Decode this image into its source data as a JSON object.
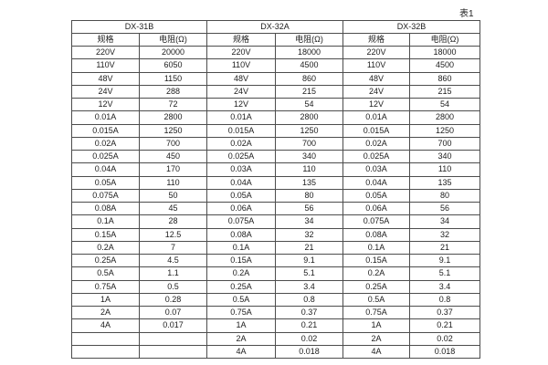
{
  "page": {
    "caption": "表1"
  },
  "table": {
    "groups": [
      {
        "name": "DX-31B"
      },
      {
        "name": "DX-32A"
      },
      {
        "name": "DX-32B"
      }
    ],
    "subheaders": {
      "spec": "规格",
      "resistance": "电阻(Ω)"
    },
    "rows": [
      [
        "220V",
        "20000",
        "220V",
        "18000",
        "220V",
        "18000"
      ],
      [
        "110V",
        "6050",
        "110V",
        "4500",
        "110V",
        "4500"
      ],
      [
        "48V",
        "1150",
        "48V",
        "860",
        "48V",
        "860"
      ],
      [
        "24V",
        "288",
        "24V",
        "215",
        "24V",
        "215"
      ],
      [
        "12V",
        "72",
        "12V",
        "54",
        "12V",
        "54"
      ],
      [
        "0.01A",
        "2800",
        "0.01A",
        "2800",
        "0.01A",
        "2800"
      ],
      [
        "0.015A",
        "1250",
        "0.015A",
        "1250",
        "0.015A",
        "1250"
      ],
      [
        "0.02A",
        "700",
        "0.02A",
        "700",
        "0.02A",
        "700"
      ],
      [
        "0.025A",
        "450",
        "0.025A",
        "340",
        "0.025A",
        "340"
      ],
      [
        "0.04A",
        "170",
        "0.03A",
        "110",
        "0.03A",
        "110"
      ],
      [
        "0.05A",
        "110",
        "0.04A",
        "135",
        "0.04A",
        "135"
      ],
      [
        "0.075A",
        "50",
        "0.05A",
        "80",
        "0.05A",
        "80"
      ],
      [
        "0.08A",
        "45",
        "0.06A",
        "56",
        "0.06A",
        "56"
      ],
      [
        "0.1A",
        "28",
        "0.075A",
        "34",
        "0.075A",
        "34"
      ],
      [
        "0.15A",
        "12.5",
        "0.08A",
        "32",
        "0.08A",
        "32"
      ],
      [
        "0.2A",
        "7",
        "0.1A",
        "21",
        "0.1A",
        "21"
      ],
      [
        "0.25A",
        "4.5",
        "0.15A",
        "9.1",
        "0.15A",
        "9.1"
      ],
      [
        "0.5A",
        "1.1",
        "0.2A",
        "5.1",
        "0.2A",
        "5.1"
      ],
      [
        "0.75A",
        "0.5",
        "0.25A",
        "3.4",
        "0.25A",
        "3.4"
      ],
      [
        "1A",
        "0.28",
        "0.5A",
        "0.8",
        "0.5A",
        "0.8"
      ],
      [
        "2A",
        "0.07",
        "0.75A",
        "0.37",
        "0.75A",
        "0.37"
      ],
      [
        "4A",
        "0.017",
        "1A",
        "0.21",
        "1A",
        "0.21"
      ],
      [
        "",
        "",
        "2A",
        "0.02",
        "2A",
        "0.02"
      ],
      [
        "",
        "",
        "4A",
        "0.018",
        "4A",
        "0.018"
      ]
    ]
  }
}
